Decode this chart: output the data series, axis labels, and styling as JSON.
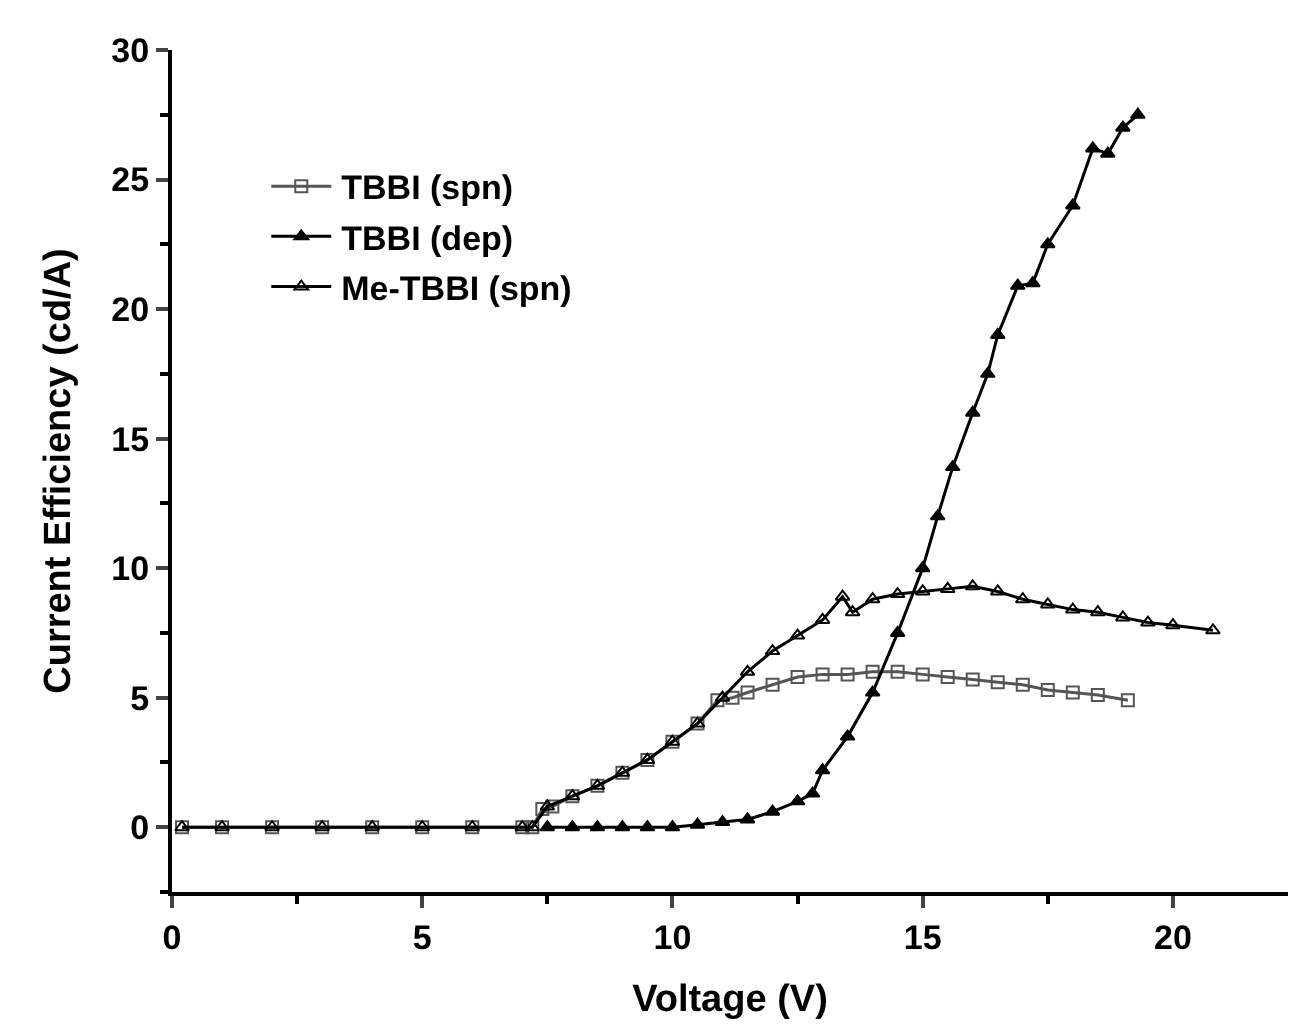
{
  "chart_data": {
    "type": "line",
    "xlabel": "Voltage (V)",
    "ylabel": "Current Efficiency (cd/A)",
    "xlim": [
      0,
      22.3
    ],
    "xticks": [
      0,
      5,
      10,
      15,
      20
    ],
    "ylim": [
      -2.5,
      30
    ],
    "yticks": [
      0,
      5,
      10,
      15,
      20,
      25,
      30
    ],
    "legend": "top left",
    "line_style": "solid",
    "series": [
      {
        "name": "TBBI (spn)",
        "color": "#555555",
        "marker": "square",
        "x": [
          0.2,
          1,
          2,
          3,
          4,
          5,
          6,
          7,
          7.2,
          7.4,
          7.6,
          8,
          8.5,
          9,
          9.5,
          10,
          10.5,
          10.9,
          11.2,
          11.5,
          12,
          12.5,
          13,
          13.5,
          14,
          14.5,
          15,
          15.5,
          16,
          16.5,
          17,
          17.5,
          18,
          18.5,
          19.1
        ],
        "values": [
          0,
          0,
          0,
          0,
          0,
          0,
          0,
          0,
          0,
          0.7,
          0.8,
          1.2,
          1.6,
          2.1,
          2.6,
          3.3,
          4.0,
          4.9,
          5.0,
          5.2,
          5.5,
          5.8,
          5.9,
          5.9,
          6.0,
          6.0,
          5.9,
          5.8,
          5.7,
          5.6,
          5.5,
          5.3,
          5.2,
          5.1,
          4.9
        ]
      },
      {
        "name": "TBBI (dep)",
        "color": "#000000",
        "marker": "triangle",
        "x": [
          7.5,
          8,
          8.5,
          9,
          9.5,
          10,
          10.5,
          11,
          11.5,
          12,
          12.5,
          12.8,
          13,
          13.5,
          14,
          14.5,
          15,
          15.3,
          15.6,
          16,
          16.3,
          16.5,
          16.9,
          17.2,
          17.5,
          18,
          18.4,
          18.7,
          19,
          19.3
        ],
        "values": [
          0,
          0,
          0,
          0,
          0,
          0,
          0.1,
          0.2,
          0.3,
          0.6,
          1.0,
          1.3,
          2.2,
          3.5,
          5.2,
          7.5,
          10,
          12,
          13.9,
          16,
          17.5,
          19,
          20.9,
          21,
          22.5,
          24,
          26.2,
          26,
          27,
          27.5
        ]
      },
      {
        "name": "Me-TBBI (spn)",
        "color": "#000000",
        "marker": "triangle",
        "x": [
          0.2,
          1,
          2,
          3,
          4,
          5,
          6,
          7,
          7.2,
          7.5,
          8,
          8.5,
          9,
          9.5,
          10,
          10.5,
          11,
          11.5,
          12,
          12.5,
          13,
          13.4,
          13.6,
          14,
          14.5,
          15,
          15.5,
          16,
          16.5,
          17,
          17.5,
          18,
          18.5,
          19,
          19.5,
          20,
          20.8
        ],
        "values": [
          0,
          0,
          0,
          0,
          0,
          0,
          0,
          0,
          0,
          0.8,
          1.2,
          1.6,
          2.1,
          2.6,
          3.3,
          4.0,
          5.0,
          6.0,
          6.8,
          7.4,
          8.0,
          8.9,
          8.3,
          8.8,
          9.0,
          9.1,
          9.2,
          9.3,
          9.1,
          8.8,
          8.6,
          8.4,
          8.3,
          8.1,
          7.9,
          7.8,
          7.6
        ]
      }
    ]
  }
}
